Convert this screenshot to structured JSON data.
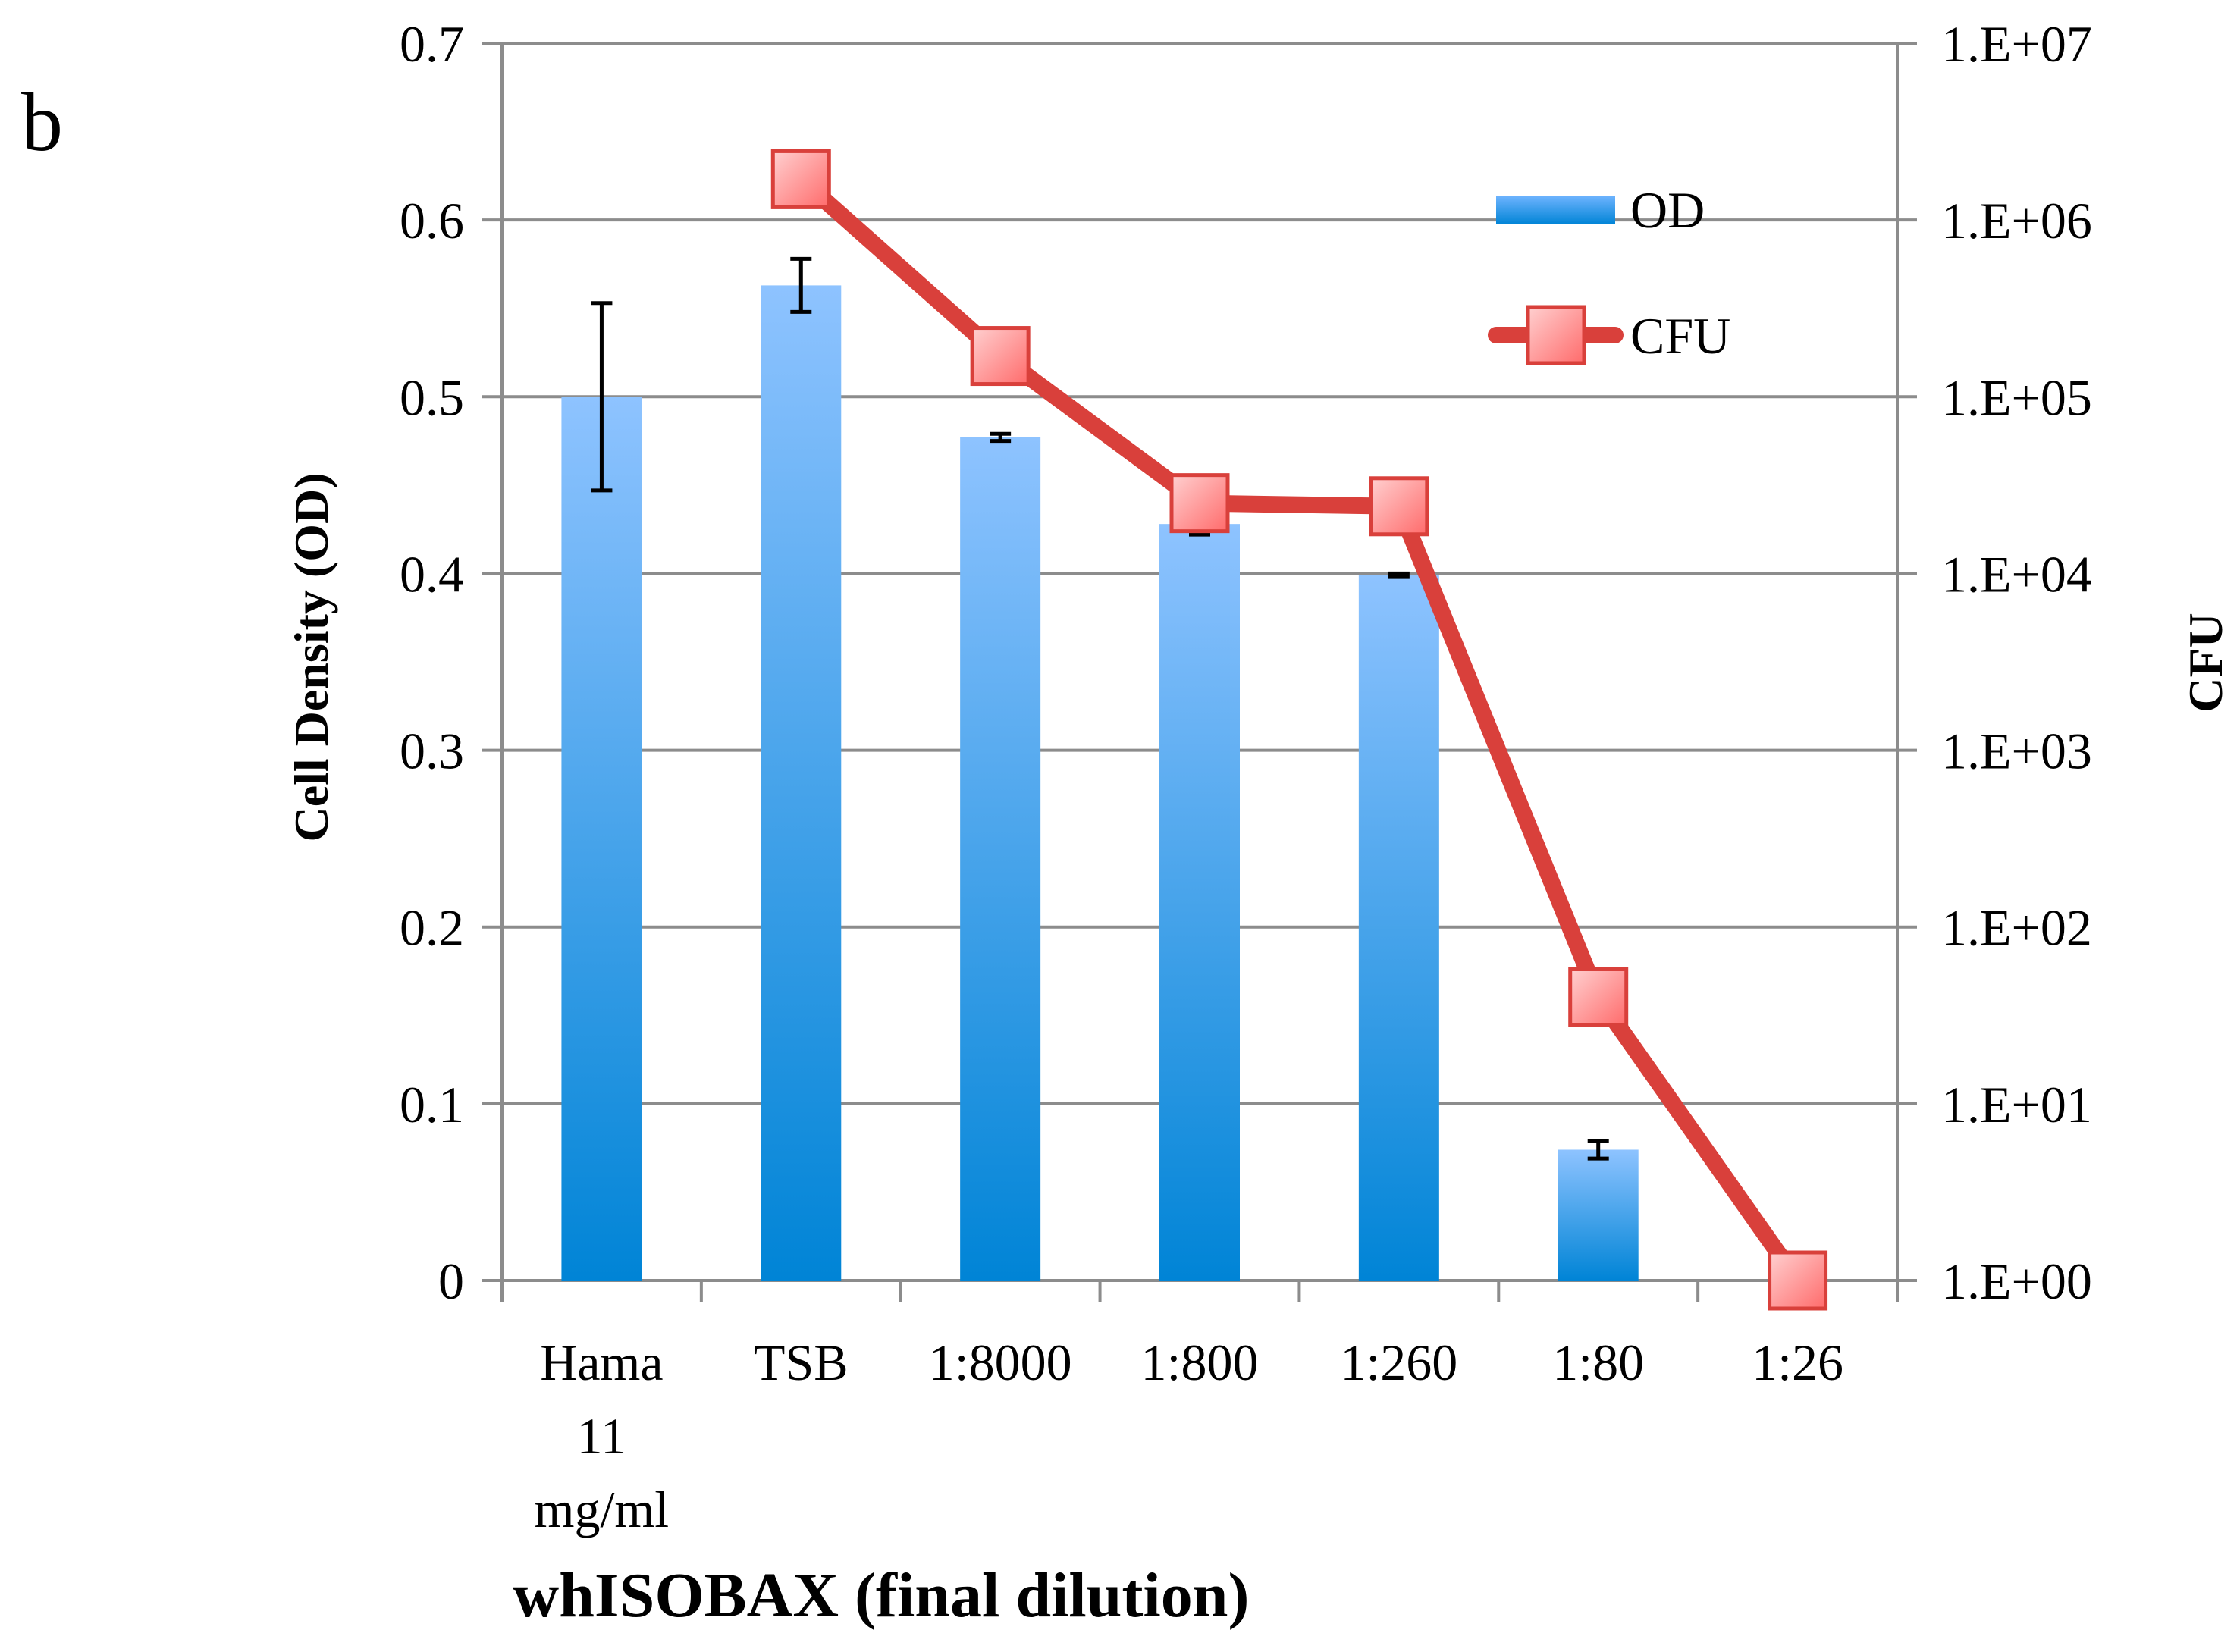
{
  "panel_label": "b",
  "chart_data": {
    "type": "bar",
    "xlabel": "whISOBAX (final dilution)",
    "ylabel": "Cell Density (OD)",
    "y2label": "CFU",
    "categories": [
      [
        "Hama",
        "11",
        "mg/ml"
      ],
      [
        "TSB"
      ],
      [
        "1:8000"
      ],
      [
        "1:800"
      ],
      [
        "1:260"
      ],
      [
        "1:80"
      ],
      [
        "1:26"
      ]
    ],
    "ylim": [
      0,
      0.7
    ],
    "yticks": [
      "0",
      "0.1",
      "0.2",
      "0.3",
      "0.4",
      "0.5",
      "0.6",
      "0.7"
    ],
    "y2_scale": "log",
    "y2lim": [
      1,
      10000000
    ],
    "y2ticks": [
      "1.E+00",
      "1.E+01",
      "1.E+02",
      "1.E+03",
      "1.E+04",
      "1.E+05",
      "1.E+06",
      "1.E+07"
    ],
    "grid": true,
    "legend_position": "top-right",
    "series": [
      {
        "name": "OD",
        "type": "bar",
        "axis": "left",
        "values": [
          0.5,
          0.563,
          0.477,
          0.428,
          0.399,
          0.074,
          null
        ],
        "error": [
          0.053,
          0.015,
          0.002,
          0.006,
          0.001,
          0.005,
          null
        ],
        "color": "#0084d6",
        "color_top": "#8ec3ff"
      },
      {
        "name": "CFU",
        "type": "line",
        "axis": "right",
        "marker": "square",
        "values": [
          null,
          1700000,
          170000,
          25000,
          24000,
          40,
          1
        ],
        "color": "#d9403b",
        "marker_fill": "#ff8f8f"
      }
    ]
  }
}
